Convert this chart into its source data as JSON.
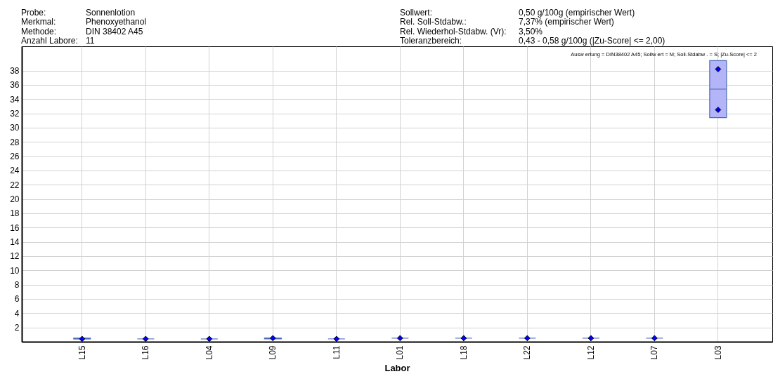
{
  "chart_data": {
    "type": "box",
    "xlabel": "Labor",
    "categories": [
      "L15",
      "L16",
      "L04",
      "L09",
      "L11",
      "L01",
      "L18",
      "L22",
      "L12",
      "L07",
      "L03"
    ],
    "colors": [
      "#1f3f8f",
      "#3a5ab8",
      "#3a5ab8",
      "#1f3f8f",
      "#3a5ab8",
      "#3a5ab8",
      "#3a5ab8",
      "#3a5ab8",
      "#3a5ab8",
      "#3a5ab8",
      "#b4b4f8"
    ],
    "boxes": [
      {
        "low": 0.4,
        "q1": 0.4,
        "median": 0.4,
        "q3": 0.5,
        "high": 0.5
      },
      {
        "low": 0.4,
        "q1": 0.4,
        "median": 0.4,
        "q3": 0.4,
        "high": 0.4
      },
      {
        "low": 0.4,
        "q1": 0.4,
        "median": 0.4,
        "q3": 0.4,
        "high": 0.4
      },
      {
        "low": 0.4,
        "q1": 0.4,
        "median": 0.5,
        "q3": 0.5,
        "high": 0.5
      },
      {
        "low": 0.4,
        "q1": 0.4,
        "median": 0.4,
        "q3": 0.4,
        "high": 0.4
      },
      {
        "low": 0.5,
        "q1": 0.5,
        "median": 0.5,
        "q3": 0.5,
        "high": 0.5
      },
      {
        "low": 0.5,
        "q1": 0.5,
        "median": 0.5,
        "q3": 0.5,
        "high": 0.5
      },
      {
        "low": 0.5,
        "q1": 0.5,
        "median": 0.5,
        "q3": 0.5,
        "high": 0.5
      },
      {
        "low": 0.5,
        "q1": 0.5,
        "median": 0.5,
        "q3": 0.5,
        "high": 0.5
      },
      {
        "low": 0.5,
        "q1": 0.5,
        "median": 0.5,
        "q3": 0.5,
        "high": 0.5
      },
      {
        "low": 31.4,
        "q1": 31.4,
        "median": 35.4,
        "q3": 39.4,
        "high": 39.4
      }
    ],
    "series": [
      {
        "type": "scatter",
        "color": "#0000ff",
        "marker": "diamond",
        "x": [
          "L15",
          "L16",
          "L04",
          "L09",
          "L11",
          "L01",
          "L18",
          "L22",
          "L12",
          "L07",
          "L03",
          "L03"
        ],
        "values": [
          0.4,
          0.4,
          0.4,
          0.5,
          0.4,
          0.5,
          0.5,
          0.5,
          0.5,
          0.5,
          38.2,
          32.5
        ]
      }
    ],
    "ylim": [
      0,
      41.4
    ],
    "yticks": [
      2,
      4,
      6,
      8,
      10,
      12,
      14,
      16,
      18,
      20,
      22,
      24,
      26,
      28,
      30,
      32,
      34,
      36,
      38
    ],
    "grid": true,
    "annotations": [
      "Probe:",
      "Sonnenlotion",
      "Merkmal:",
      "Phenoxyethanol",
      "Methode:",
      "DIN 38402 A45",
      "Anzahl Labore:",
      "11",
      "Sollwert:",
      "0,50 g/100g (empirischer Wert)",
      "Rel. Soll-Stdabw.:",
      "7,37% (empirischer Wert)",
      "Rel. Wiederhol-Stdabw. (Vr):",
      "3,50%",
      "Toleranzbereich:",
      "0,43 - 0,58 g/100g (|Zu-Score| <= 2,00)",
      "Ausw ertung = DIN38402 A45; Sollw ert = M; Soll-Stdabw . = S; |Zu-Score| <= 2"
    ]
  }
}
